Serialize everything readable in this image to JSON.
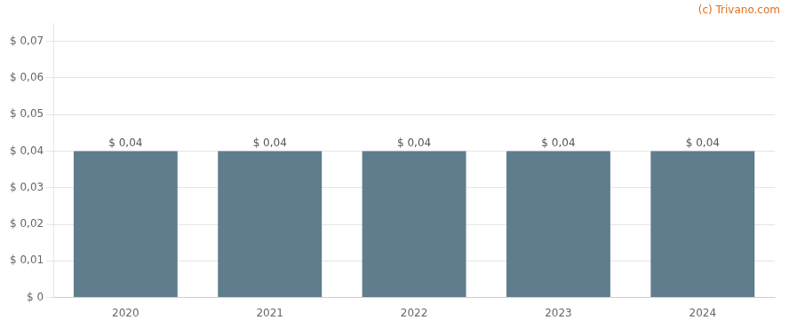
{
  "chart_data": {
    "type": "bar",
    "categories": [
      "2020",
      "2021",
      "2022",
      "2023",
      "2024"
    ],
    "values": [
      0.04,
      0.04,
      0.04,
      0.04,
      0.04
    ],
    "value_labels": [
      "$ 0,04",
      "$ 0,04",
      "$ 0,04",
      "$ 0,04",
      "$ 0,04"
    ],
    "data_labels": true,
    "color": "#5f7d8c",
    "ylim": [
      0,
      0.075
    ],
    "yticks": [
      {
        "value": 0,
        "label": "$ 0"
      },
      {
        "value": 0.01,
        "label": "$ 0,01"
      },
      {
        "value": 0.02,
        "label": "$ 0,02"
      },
      {
        "value": 0.03,
        "label": "$ 0,03"
      },
      {
        "value": 0.04,
        "label": "$ 0,04"
      },
      {
        "value": 0.05,
        "label": "$ 0,05"
      },
      {
        "value": 0.06,
        "label": "$ 0,06"
      },
      {
        "value": 0.07,
        "label": "$ 0,07"
      }
    ],
    "grid": true,
    "annotations": [
      "(c) Trivano.com"
    ]
  }
}
